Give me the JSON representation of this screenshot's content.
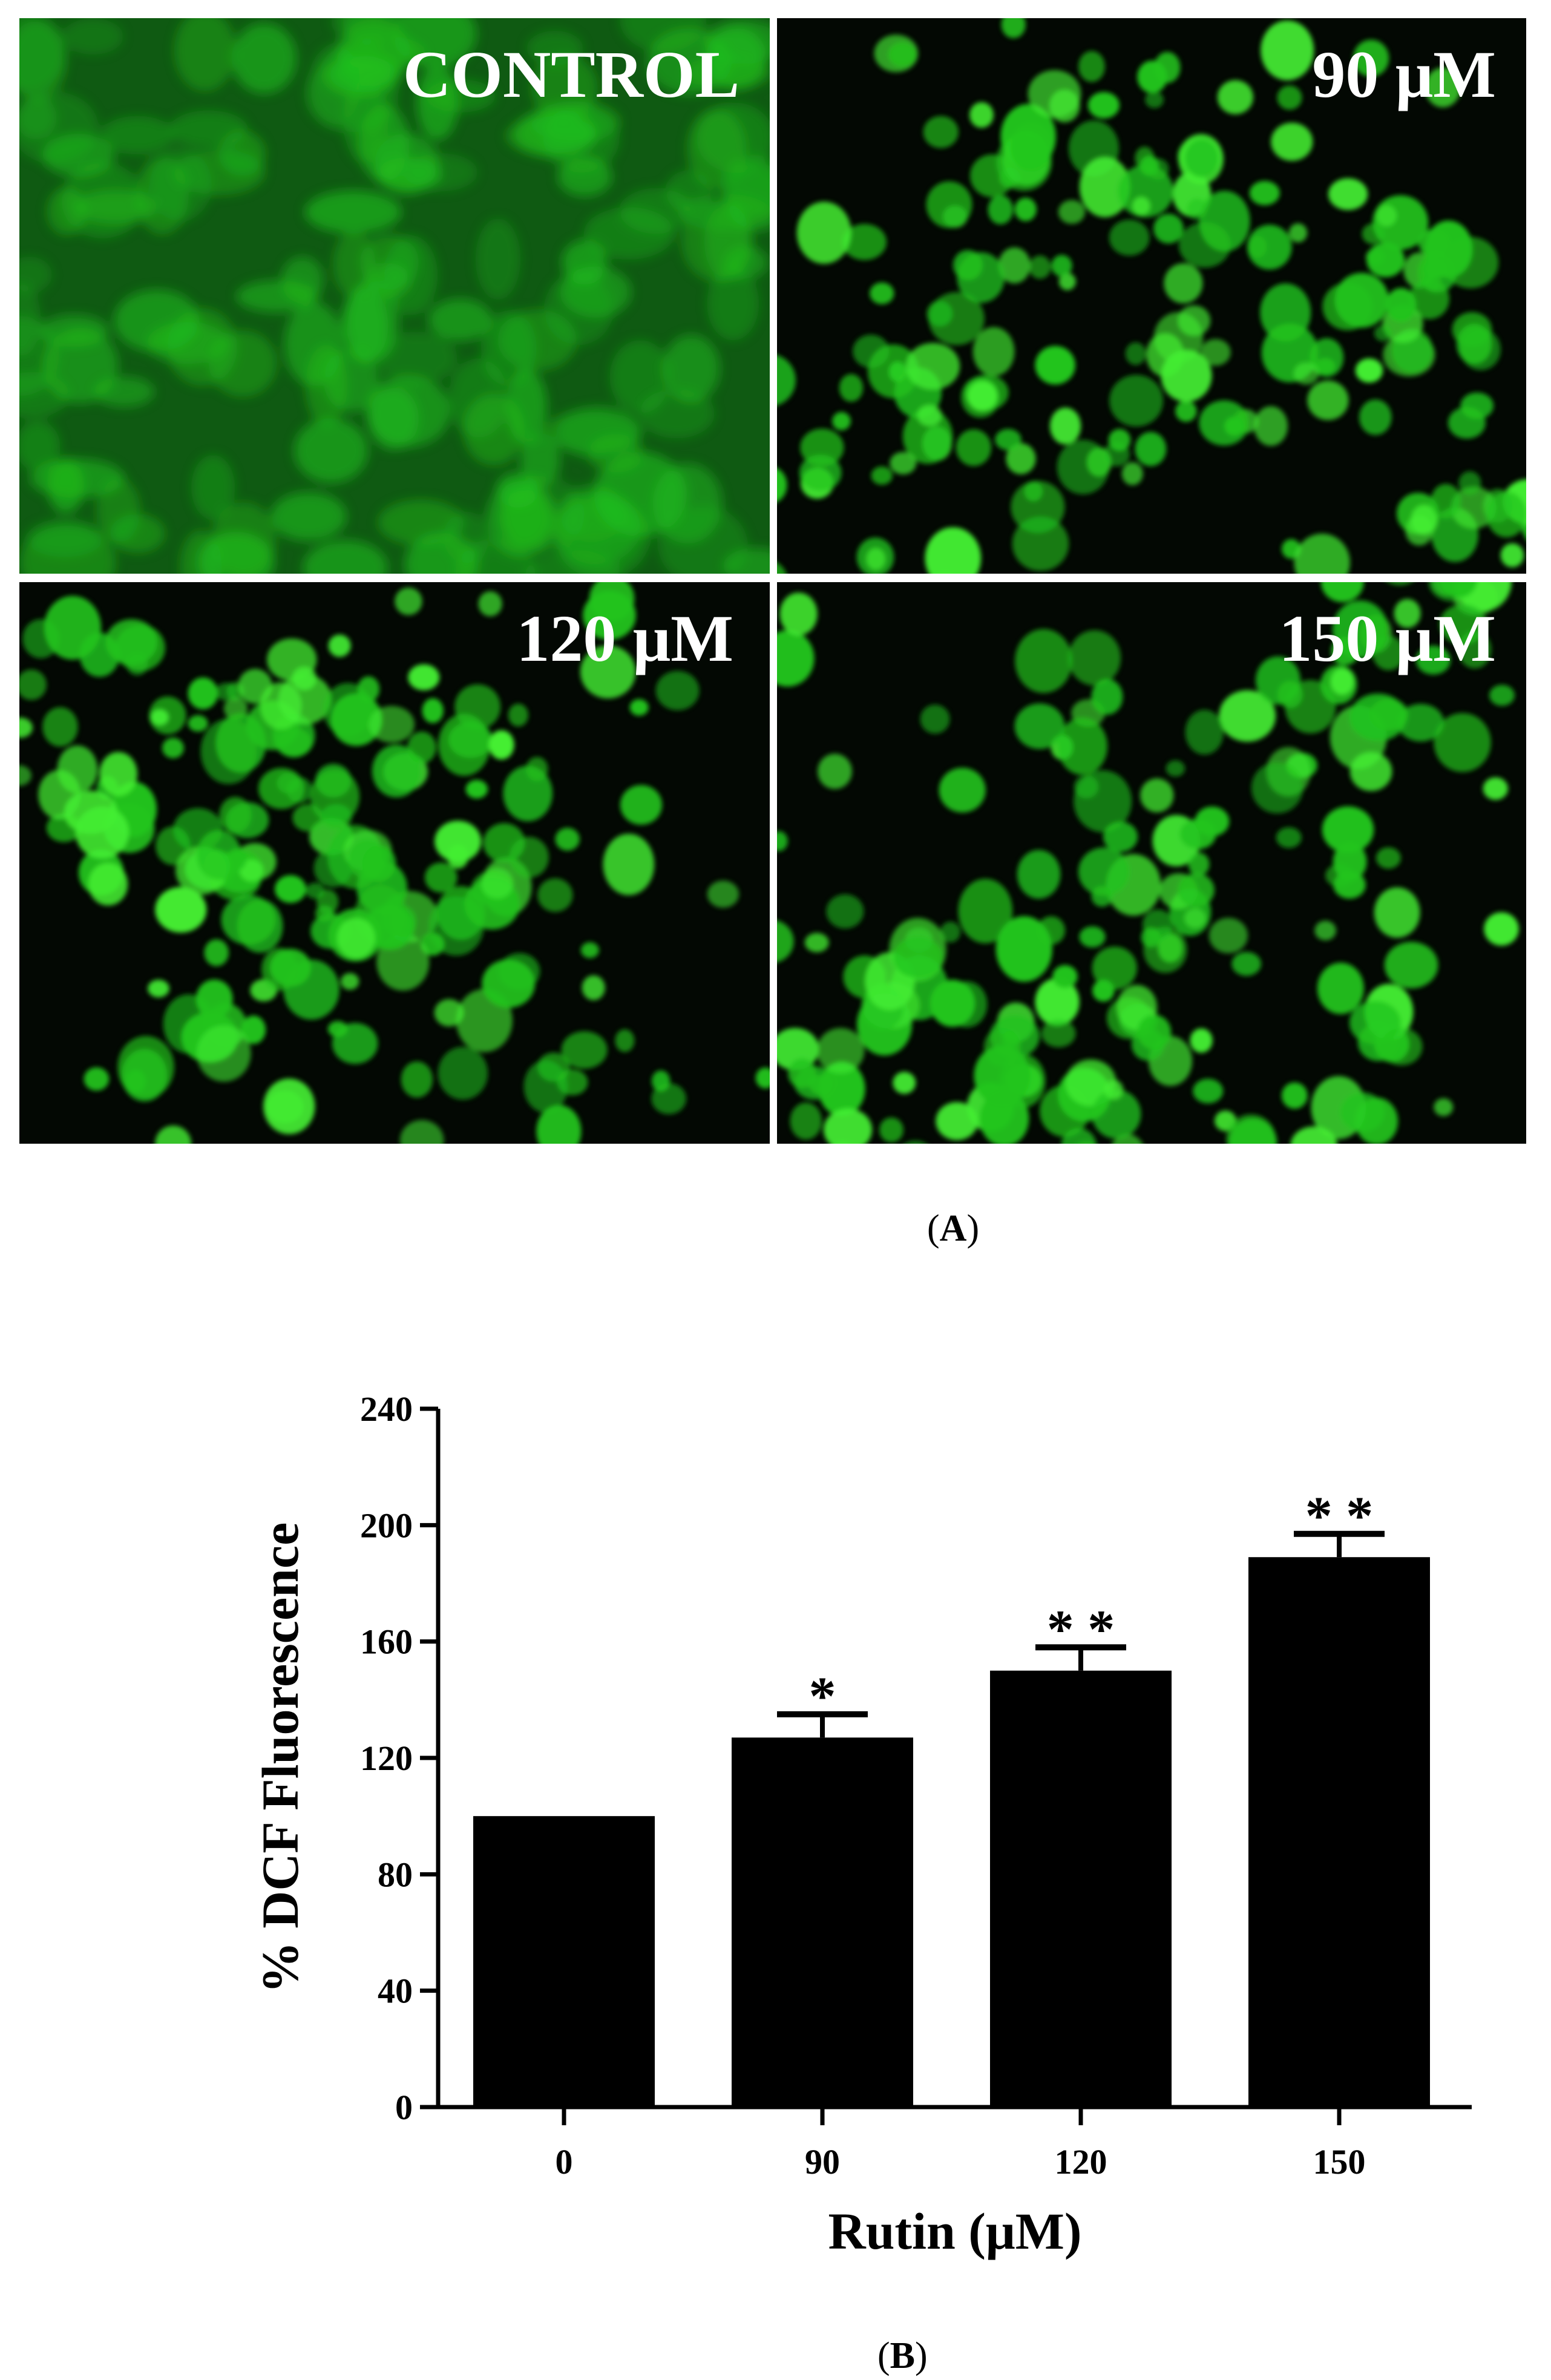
{
  "panel_a": {
    "images": [
      {
        "label": "CONTROL",
        "style": "diffuse"
      },
      {
        "label": "90 μM",
        "style": "cells"
      },
      {
        "label": "120 μM",
        "style": "cells"
      },
      {
        "label": "150 μM",
        "style": "cells"
      }
    ],
    "caption_prefix": "(",
    "caption_letter": "A",
    "caption_suffix": ")",
    "colors": {
      "fluorescence": "#22c41e",
      "background": "#000000"
    }
  },
  "panel_b": {
    "caption_prefix": "(",
    "caption_letter": "B",
    "caption_suffix": ")"
  },
  "chart_data": {
    "type": "bar",
    "categories": [
      "0",
      "90",
      "120",
      "150"
    ],
    "values": [
      100,
      127,
      150,
      189
    ],
    "errors": [
      0,
      8,
      8,
      8
    ],
    "significance": [
      "",
      "*",
      "* *",
      "* *"
    ],
    "xlabel": "Rutin (μM)",
    "ylabel": "% DCF Fluorescence",
    "ylim": [
      0,
      240
    ],
    "yticks": [
      "0",
      "40",
      "80",
      "120",
      "160",
      "200",
      "240"
    ],
    "bar_color": "#000000",
    "grid": false
  }
}
